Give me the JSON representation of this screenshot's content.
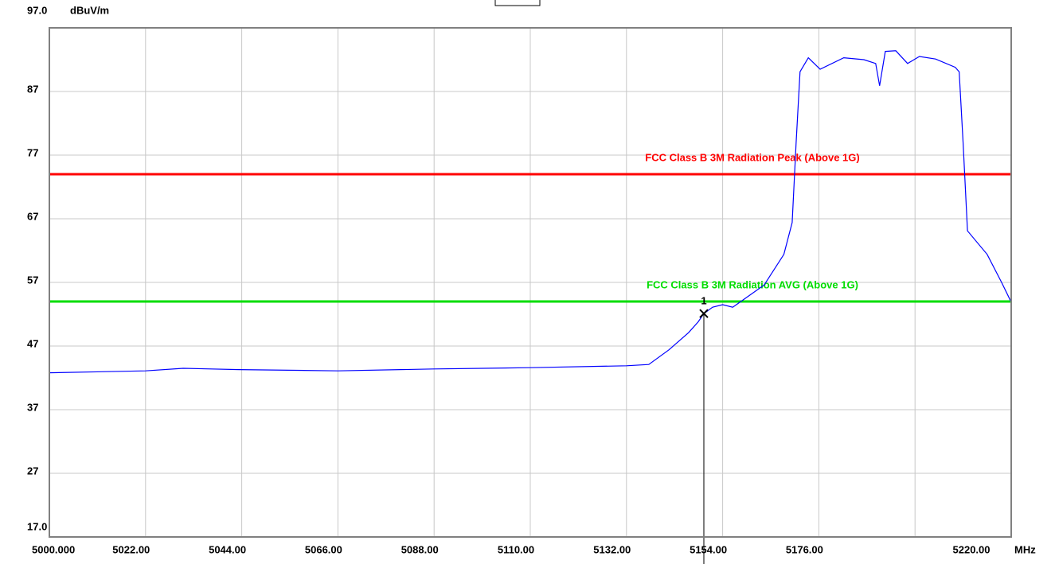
{
  "chart_data": {
    "type": "line",
    "y_unit": "dBuV/m",
    "x_unit": "MHz",
    "xlim": [
      5000,
      5220
    ],
    "ylim": [
      17,
      97
    ],
    "xticks": [
      {
        "value": 5000,
        "label": "5000.000"
      },
      {
        "value": 5022,
        "label": "5022.00"
      },
      {
        "value": 5044,
        "label": "5044.00"
      },
      {
        "value": 5066,
        "label": "5066.00"
      },
      {
        "value": 5088,
        "label": "5088.00"
      },
      {
        "value": 5110,
        "label": "5110.00"
      },
      {
        "value": 5132,
        "label": "5132.00"
      },
      {
        "value": 5154,
        "label": "5154.00"
      },
      {
        "value": 5176,
        "label": "5176.00"
      },
      {
        "value": 5220,
        "label": "5220.00"
      }
    ],
    "xgrid": [
      5022,
      5044,
      5066,
      5088,
      5110,
      5132,
      5154,
      5176,
      5198
    ],
    "yticks": [
      {
        "value": 97,
        "label": "97.0"
      },
      87,
      77,
      67,
      57,
      47,
      37,
      27,
      {
        "value": 17,
        "label": "17.0"
      }
    ],
    "grid": true,
    "series": [
      {
        "color": "#0000ff",
        "x": [
          5000,
          5022,
          5030.6,
          5043.3,
          5066,
          5088,
          5110,
          5132,
          5137.1,
          5141.7,
          5146.2,
          5148.4,
          5149.7,
          5151.7,
          5154,
          5156.3,
          5159,
          5163.5,
          5168,
          5169.9,
          5170.8,
          5171.7,
          5173.6,
          5176.3,
          5181.7,
          5186.3,
          5189,
          5189.9,
          5191.2,
          5193.6,
          5196.3,
          5199,
          5202.7,
          5207.2,
          5208.1,
          5209,
          5210,
          5214.5,
          5217.8,
          5220
        ],
        "values": [
          42.8,
          43.1,
          43.5,
          43.3,
          43.1,
          43.4,
          43.6,
          43.9,
          44.1,
          46.4,
          49.1,
          50.8,
          52.1,
          53.1,
          53.5,
          53.1,
          54.4,
          56.6,
          61.4,
          66.4,
          78.9,
          90.1,
          92.3,
          90.5,
          92.3,
          92,
          91.4,
          87.9,
          93.3,
          93.4,
          91.4,
          92.5,
          92.1,
          90.8,
          90.1,
          78.9,
          65.1,
          61.4,
          57,
          53.9
        ]
      }
    ],
    "limits": [
      {
        "name": "FCC Class B 3M Radiation Peak (Above 1G)",
        "value": 74,
        "color": "#ff0000"
      },
      {
        "name": "FCC Class B 3M Radiation AVG (Above 1G)",
        "value": 54,
        "color": "#00dd00"
      }
    ],
    "markers": [
      {
        "label": "1",
        "x": 5149.7,
        "value": 52.1
      }
    ]
  }
}
